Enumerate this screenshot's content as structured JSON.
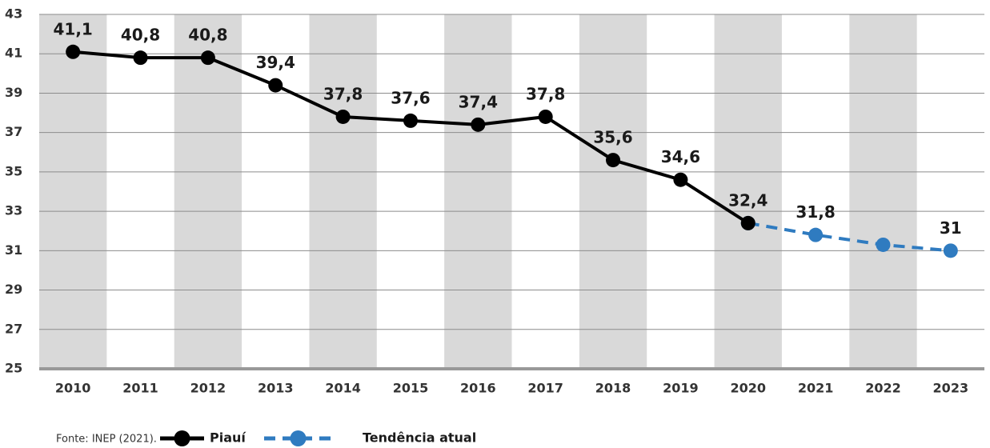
{
  "chart_data": {
    "type": "line",
    "categories": [
      "2010",
      "2011",
      "2012",
      "2013",
      "2014",
      "2015",
      "2016",
      "2017",
      "2018",
      "2019",
      "2020",
      "2021",
      "2022",
      "2023"
    ],
    "series": [
      {
        "name": "Piauí",
        "color": "#000000",
        "dashed": false,
        "values": [
          41.1,
          40.8,
          40.8,
          39.4,
          37.8,
          37.6,
          37.4,
          37.8,
          35.6,
          34.6,
          32.4,
          null,
          null,
          null
        ],
        "value_labels": [
          "41,1",
          "40,8",
          "40,8",
          "39,4",
          "37,8",
          "37,6",
          "37,4",
          "37,8",
          "35,6",
          "34,6",
          "32,4",
          null,
          null,
          null
        ]
      },
      {
        "name": "Tendência atual",
        "color": "#2f7bc0",
        "dashed": true,
        "values": [
          null,
          null,
          null,
          null,
          null,
          null,
          null,
          null,
          null,
          null,
          32.4,
          31.8,
          31.3,
          31
        ],
        "value_labels": [
          null,
          null,
          null,
          null,
          null,
          null,
          null,
          null,
          null,
          null,
          null,
          "31,8",
          null,
          "31"
        ]
      }
    ],
    "ylim": [
      25,
      43
    ],
    "yticks": [
      25,
      27,
      29,
      31,
      33,
      35,
      37,
      39,
      41,
      43
    ],
    "grid": true,
    "source": "Fonte: INEP (2021)."
  }
}
